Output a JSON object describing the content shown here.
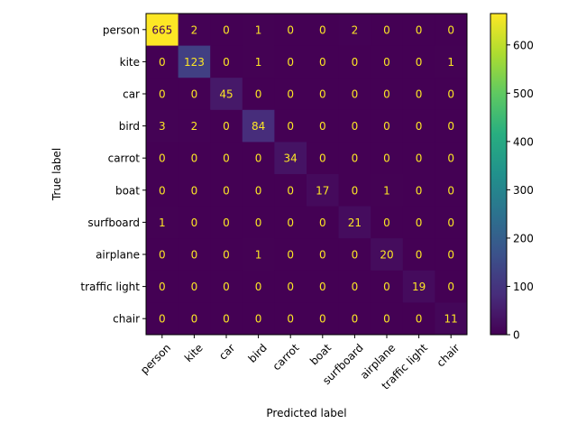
{
  "chart_data": {
    "type": "heatmap",
    "title": "",
    "xlabel": "Predicted label",
    "ylabel": "True label",
    "x_categories": [
      "person",
      "kite",
      "car",
      "bird",
      "carrot",
      "boat",
      "surfboard",
      "airplane",
      "traffic light",
      "chair"
    ],
    "y_categories": [
      "person",
      "kite",
      "car",
      "bird",
      "carrot",
      "boat",
      "surfboard",
      "airplane",
      "traffic light",
      "chair"
    ],
    "values": [
      [
        665,
        2,
        0,
        1,
        0,
        0,
        2,
        0,
        0,
        0
      ],
      [
        0,
        123,
        0,
        1,
        0,
        0,
        0,
        0,
        0,
        1
      ],
      [
        0,
        0,
        45,
        0,
        0,
        0,
        0,
        0,
        0,
        0
      ],
      [
        3,
        2,
        0,
        84,
        0,
        0,
        0,
        0,
        0,
        0
      ],
      [
        0,
        0,
        0,
        0,
        34,
        0,
        0,
        0,
        0,
        0
      ],
      [
        0,
        0,
        0,
        0,
        0,
        17,
        0,
        1,
        0,
        0
      ],
      [
        1,
        0,
        0,
        0,
        0,
        0,
        21,
        0,
        0,
        0
      ],
      [
        0,
        0,
        0,
        1,
        0,
        0,
        0,
        20,
        0,
        0
      ],
      [
        0,
        0,
        0,
        0,
        0,
        0,
        0,
        0,
        19,
        0
      ],
      [
        0,
        0,
        0,
        0,
        0,
        0,
        0,
        0,
        0,
        11
      ]
    ],
    "colormap": "viridis",
    "colorbar": {
      "range": [
        0,
        665
      ],
      "ticks": [
        0,
        100,
        200,
        300,
        400,
        500,
        600
      ]
    },
    "text_color_light": "#fde725",
    "text_color_dark": "#440154"
  }
}
